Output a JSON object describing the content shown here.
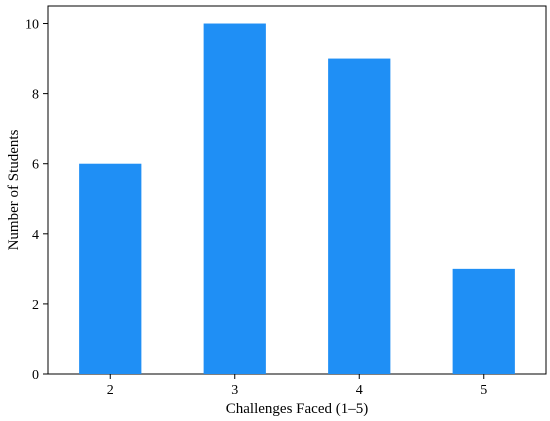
{
  "chart_data": {
    "type": "bar",
    "title": "",
    "xlabel": "Challenges Faced (1–5)",
    "ylabel": "Number of Students",
    "categories": [
      "2",
      "3",
      "4",
      "5"
    ],
    "values": [
      6,
      10,
      9,
      3
    ],
    "ylim": [
      0,
      10.5
    ],
    "yticks": [
      0,
      2,
      4,
      6,
      8,
      10
    ],
    "bar_color": "#1f8ff5",
    "grid": false,
    "legend": "none"
  }
}
